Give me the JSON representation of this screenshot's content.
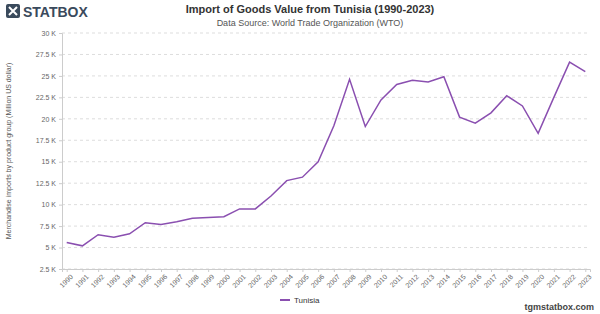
{
  "chart_data": {
    "type": "line",
    "title": "Import of Goods Value from Tunisia (1990-2023)",
    "subtitle": "Data Source: World Trade Organization (WTO)",
    "logo": "STATBOX",
    "source_url": "tgmstatbox.com",
    "y_label": "Merchandise imports by product group (Million US dollar)",
    "categories": [
      "1990",
      "1991",
      "1992",
      "1993",
      "1994",
      "1995",
      "1996",
      "1997",
      "1998",
      "1999",
      "2000",
      "2001",
      "2002",
      "2003",
      "2004",
      "2005",
      "2006",
      "2007",
      "2008",
      "2009",
      "2010",
      "2011",
      "2012",
      "2013",
      "2014",
      "2015",
      "2016",
      "2017",
      "2018",
      "2019",
      "2020",
      "2021",
      "2022",
      "2023"
    ],
    "series": [
      {
        "name": "Tunisia",
        "color": "#8a4fb0",
        "values": [
          5600,
          5200,
          6500,
          6200,
          6600,
          7900,
          7700,
          8000,
          8400,
          8500,
          8600,
          9500,
          9500,
          11000,
          12800,
          13200,
          15000,
          19200,
          24600,
          19100,
          22200,
          24000,
          24500,
          24300,
          24900,
          20200,
          19500,
          20700,
          22700,
          21500,
          18300,
          22500,
          26600,
          25500
        ]
      }
    ],
    "ylim": [
      2500,
      30000
    ],
    "yticks": [
      {
        "value": 2500,
        "label": "2.5 K"
      },
      {
        "value": 5000,
        "label": "5 K"
      },
      {
        "value": 7500,
        "label": "7.5 K"
      },
      {
        "value": 10000,
        "label": "10 K"
      },
      {
        "value": 12500,
        "label": "12.5 K"
      },
      {
        "value": 15000,
        "label": "15 K"
      },
      {
        "value": 17500,
        "label": "17.5 K"
      },
      {
        "value": 20000,
        "label": "20 K"
      },
      {
        "value": 22500,
        "label": "22.5 K"
      },
      {
        "value": 25000,
        "label": "25 K"
      },
      {
        "value": 27500,
        "label": "27.5 K"
      },
      {
        "value": 30000,
        "label": "30 K"
      }
    ],
    "grid": true,
    "legend": "bottom"
  }
}
